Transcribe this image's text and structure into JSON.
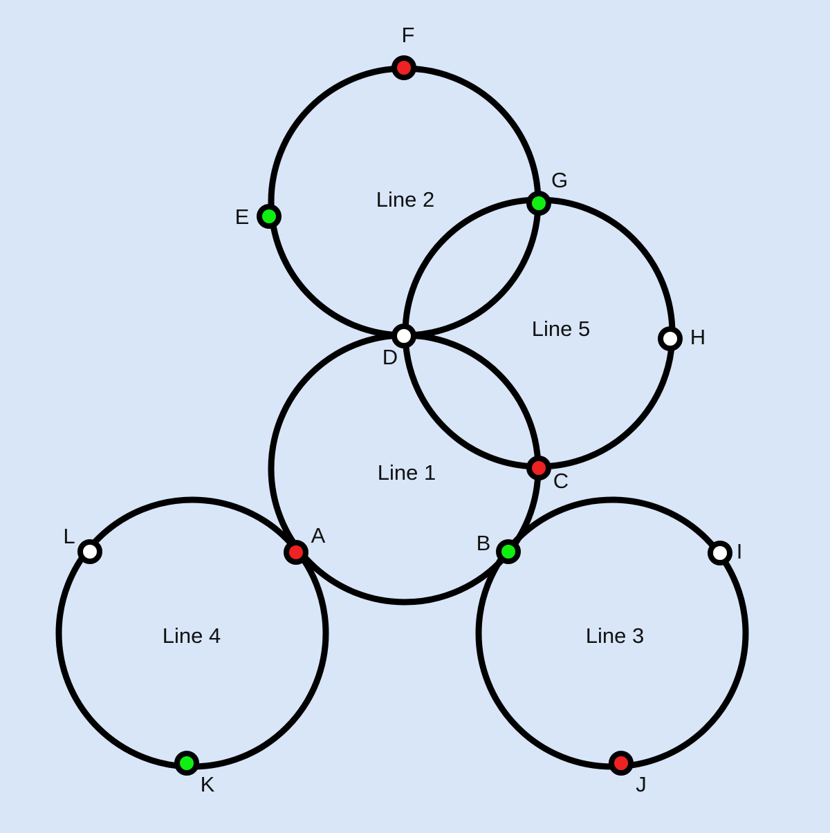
{
  "colors": {
    "background": "#d8e6f8",
    "line_stroke": "#000000",
    "station_red": "#ee2222",
    "station_green": "#11ee11",
    "station_white": "#ffffff"
  },
  "lines": [
    {
      "id": "line1",
      "label": "Line 1"
    },
    {
      "id": "line2",
      "label": "Line 2"
    },
    {
      "id": "line3",
      "label": "Line 3"
    },
    {
      "id": "line4",
      "label": "Line 4"
    },
    {
      "id": "line5",
      "label": "Line 5"
    }
  ],
  "stations": [
    {
      "id": "A",
      "label": "A",
      "color": "red"
    },
    {
      "id": "B",
      "label": "B",
      "color": "green"
    },
    {
      "id": "C",
      "label": "C",
      "color": "red"
    },
    {
      "id": "D",
      "label": "D",
      "color": "white"
    },
    {
      "id": "E",
      "label": "E",
      "color": "green"
    },
    {
      "id": "F",
      "label": "F",
      "color": "red"
    },
    {
      "id": "G",
      "label": "G",
      "color": "green"
    },
    {
      "id": "H",
      "label": "H",
      "color": "white"
    },
    {
      "id": "I",
      "label": "I",
      "color": "white"
    },
    {
      "id": "J",
      "label": "J",
      "color": "red"
    },
    {
      "id": "K",
      "label": "K",
      "color": "green"
    },
    {
      "id": "L",
      "label": "L",
      "color": "white"
    }
  ]
}
